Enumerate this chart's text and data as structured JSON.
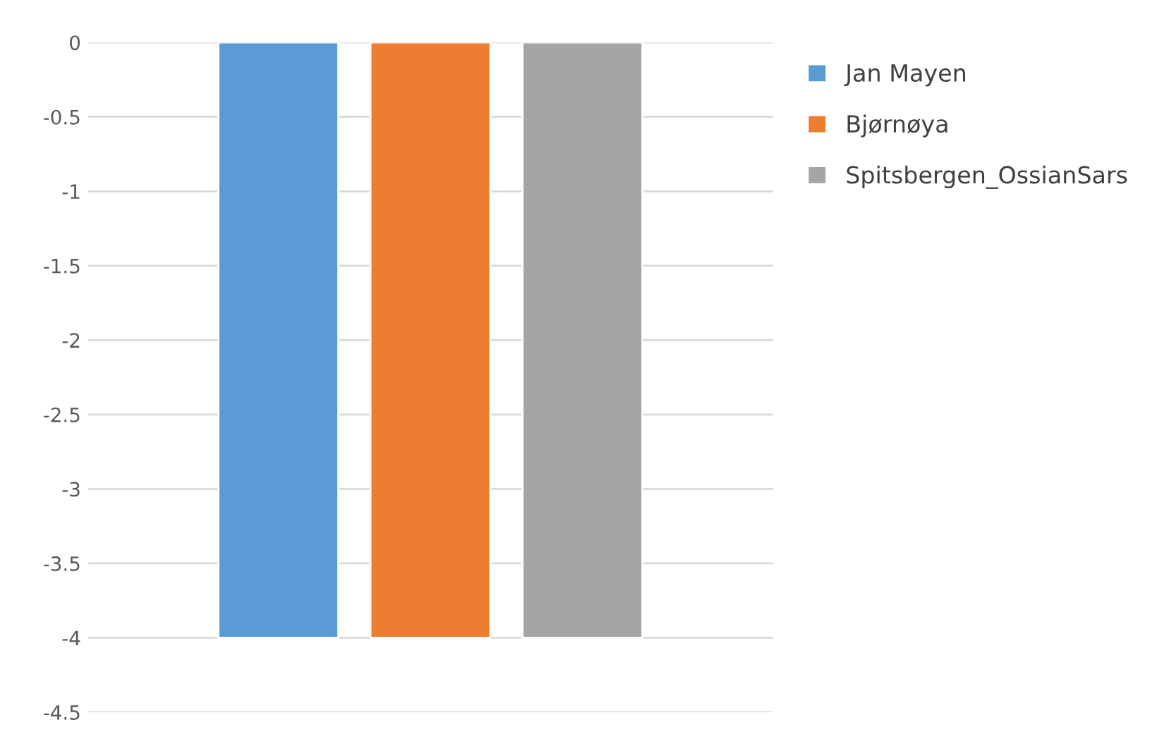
{
  "chart_data": {
    "type": "bar",
    "categories": [
      null
    ],
    "series": [
      {
        "name": "Jan Mayen",
        "color": "#5b9bd5",
        "values": [
          -4
        ]
      },
      {
        "name": "Bjørnøya",
        "color": "#ed7d31",
        "values": [
          -4
        ]
      },
      {
        "name": "Spitsbergen_OssianSars",
        "color": "#a5a5a5",
        "values": [
          -4
        ]
      }
    ],
    "ylim": [
      -4.5,
      0
    ],
    "yticks": [
      0,
      -0.5,
      -1,
      -1.5,
      -2,
      -2.5,
      -3,
      -3.5,
      -4,
      -4.5
    ],
    "grid": "y",
    "legend": "top right",
    "tick_labels": "y"
  }
}
